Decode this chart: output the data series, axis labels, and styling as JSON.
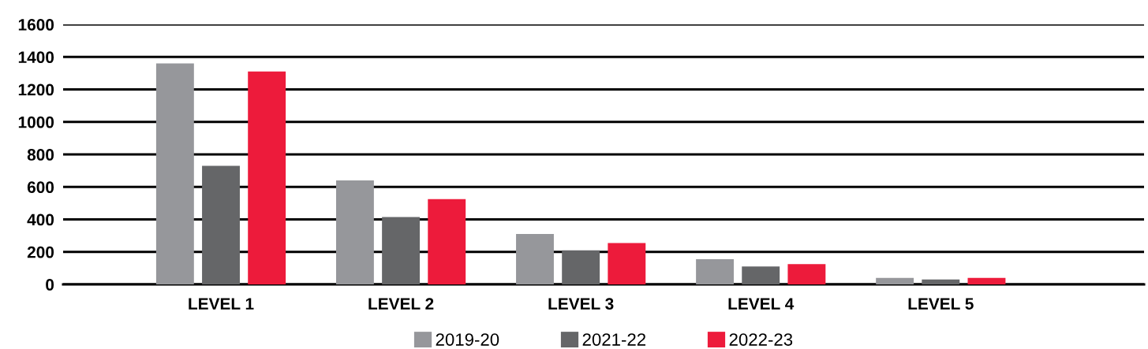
{
  "chart_data": {
    "type": "bar",
    "categories": [
      "LEVEL 1",
      "LEVEL 2",
      "LEVEL 3",
      "LEVEL 4",
      "LEVEL 5"
    ],
    "series": [
      {
        "name": "2019-20",
        "color": "#96979b",
        "values": [
          1360,
          640,
          310,
          155,
          40
        ]
      },
      {
        "name": "2021-22",
        "color": "#656668",
        "values": [
          730,
          415,
          210,
          110,
          30
        ]
      },
      {
        "name": "2022-23",
        "color": "#ed1b3b",
        "values": [
          1310,
          525,
          255,
          125,
          40
        ]
      }
    ],
    "ylim": [
      0,
      1600
    ],
    "yticks": [
      0,
      200,
      400,
      600,
      800,
      1000,
      1200,
      1400,
      1600
    ],
    "grid": "y",
    "legend": "bottom"
  }
}
